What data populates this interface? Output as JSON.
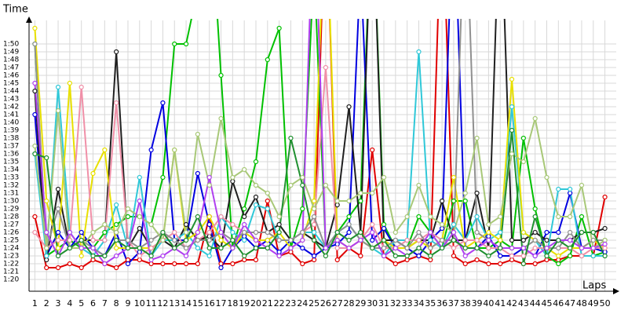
{
  "chart_data": {
    "type": "line",
    "y_label": "Time",
    "x_label": "Laps",
    "grid": true,
    "x": [
      1,
      2,
      3,
      4,
      5,
      6,
      7,
      8,
      9,
      10,
      11,
      12,
      13,
      14,
      15,
      16,
      17,
      18,
      19,
      20,
      21,
      22,
      23,
      24,
      25,
      26,
      27,
      28,
      29,
      30,
      31,
      32,
      33,
      34,
      35,
      36,
      37,
      38,
      39,
      40,
      41,
      42,
      43,
      44,
      45,
      46,
      47,
      48,
      49,
      50
    ],
    "xticks": [
      1,
      2,
      3,
      4,
      5,
      6,
      7,
      8,
      9,
      10,
      11,
      12,
      13,
      14,
      15,
      16,
      17,
      18,
      19,
      20,
      21,
      22,
      23,
      24,
      25,
      26,
      27,
      28,
      29,
      30,
      31,
      32,
      33,
      34,
      35,
      36,
      37,
      38,
      39,
      40,
      41,
      42,
      43,
      44,
      45,
      46,
      47,
      48,
      49,
      50
    ],
    "xlim": [
      0.5,
      50.5
    ],
    "ylim": [
      78.5,
      113
    ],
    "yticks": [
      {
        "value": 80,
        "label": "1:20"
      },
      {
        "value": 81,
        "label": "1:21"
      },
      {
        "value": 82,
        "label": "1:22"
      },
      {
        "value": 83,
        "label": "1:23"
      },
      {
        "value": 84,
        "label": "1:24"
      },
      {
        "value": 85,
        "label": "1:25"
      },
      {
        "value": 86,
        "label": "1:26"
      },
      {
        "value": 87,
        "label": "1:27"
      },
      {
        "value": 88,
        "label": "1:28"
      },
      {
        "value": 89,
        "label": "1:29"
      },
      {
        "value": 90,
        "label": "1:30"
      },
      {
        "value": 91,
        "label": "1:31"
      },
      {
        "value": 92,
        "label": "1:32"
      },
      {
        "value": 93,
        "label": "1:33"
      },
      {
        "value": 94,
        "label": "1:34"
      },
      {
        "value": 95,
        "label": "1:35"
      },
      {
        "value": 96,
        "label": "1:36"
      },
      {
        "value": 97,
        "label": "1:37"
      },
      {
        "value": 98,
        "label": "1:38"
      },
      {
        "value": 99,
        "label": "1:39"
      },
      {
        "value": 100,
        "label": "1:40"
      },
      {
        "value": 101,
        "label": "1:41"
      },
      {
        "value": 102,
        "label": "1:42"
      },
      {
        "value": 103,
        "label": "1:43"
      },
      {
        "value": 104,
        "label": "1:44"
      },
      {
        "value": 105,
        "label": "1:45"
      },
      {
        "value": 106,
        "label": "1:46"
      },
      {
        "value": 107,
        "label": "1:47"
      },
      {
        "value": 108,
        "label": "1:48"
      },
      {
        "value": 109,
        "label": "1:49"
      },
      {
        "value": 110,
        "label": "1:50"
      }
    ],
    "series": [
      {
        "color": "#e00000",
        "values": [
          88,
          81.5,
          81.5,
          82,
          81.5,
          82.5,
          82,
          81.5,
          82.5,
          82.5,
          82,
          82,
          82,
          82,
          82,
          88,
          82,
          82,
          82.5,
          82.5,
          90,
          83,
          83.5,
          82,
          82.5,
          130,
          82.5,
          84,
          83,
          96.5,
          83,
          82,
          82.5,
          83,
          82.5,
          130,
          83,
          82,
          82.5,
          82,
          82,
          82.5,
          82,
          82,
          82.5,
          82.5,
          83,
          83,
          83,
          90.5
        ]
      },
      {
        "color": "#00c000",
        "values": [
          110,
          83,
          84,
          85,
          84,
          84,
          86,
          87,
          88,
          88,
          87,
          93,
          110,
          110,
          117,
          130,
          106,
          84,
          89,
          95,
          108,
          112,
          84,
          89,
          120,
          84,
          86,
          88,
          90,
          130,
          87,
          84,
          84,
          88,
          86,
          84,
          90,
          90,
          84,
          84,
          85,
          84,
          98,
          89,
          83,
          82,
          83,
          88,
          83,
          83.5
        ]
      },
      {
        "color": "#0000e0",
        "values": [
          101,
          83,
          86,
          84,
          86,
          84,
          83,
          86,
          82,
          83.5,
          96.5,
          102.5,
          85,
          85,
          93.5,
          87,
          81.5,
          84,
          85.5,
          84,
          85,
          83.5,
          85,
          84,
          83,
          84,
          84.5,
          86,
          120,
          85,
          86.5,
          84,
          84,
          83,
          85,
          86.5,
          130,
          84,
          84,
          85.5,
          83,
          83,
          84,
          83,
          86,
          86,
          91,
          84,
          84,
          83.5
        ]
      },
      {
        "color": "#202020",
        "values": [
          104,
          82.5,
          91.5,
          84,
          85,
          85,
          85,
          109,
          84,
          86.5,
          84,
          85,
          84,
          87,
          85,
          85.5,
          84,
          92.5,
          88,
          90.5,
          86,
          87,
          85,
          86,
          85,
          84,
          89.5,
          102,
          86,
          130,
          85,
          85,
          84,
          85,
          85,
          90,
          85,
          85,
          91,
          84,
          130,
          85,
          85,
          86,
          85,
          85,
          85,
          86,
          86,
          86.5
        ]
      },
      {
        "color": "#30c8d8",
        "values": [
          96,
          83,
          104.5,
          86,
          84,
          83,
          85,
          89.5,
          84,
          93,
          83,
          85,
          85,
          86,
          84,
          83,
          88,
          86,
          85,
          89.5,
          89,
          85,
          85,
          86,
          86,
          84,
          86,
          87,
          85,
          84,
          83,
          85,
          85,
          109,
          85,
          84,
          87,
          85,
          88,
          85,
          86,
          102,
          86,
          85,
          83,
          91.5,
          91.5,
          83,
          83,
          83
        ]
      },
      {
        "color": "#e8e000",
        "values": [
          112,
          90,
          84,
          105,
          83,
          93.5,
          96.5,
          84,
          84,
          84,
          84,
          85,
          96.5,
          85,
          86,
          88,
          85,
          84,
          86,
          85,
          85,
          86,
          84,
          85,
          90,
          130,
          85,
          84,
          85,
          84,
          85,
          84,
          84,
          85,
          84,
          85,
          93,
          84,
          85,
          86,
          85,
          105.5,
          86,
          85,
          84,
          83,
          84,
          84,
          85,
          84
        ]
      },
      {
        "color": "#f090a8",
        "values": [
          86,
          84,
          85,
          85,
          104.5,
          85,
          85,
          102.5,
          85,
          83,
          84,
          85,
          86,
          84,
          85,
          86,
          88,
          87,
          86,
          86,
          86,
          85,
          85,
          86,
          87,
          107,
          84,
          84,
          85,
          87,
          84,
          84,
          85,
          85,
          86,
          85,
          84,
          85,
          85,
          84,
          84,
          83,
          83,
          84,
          84,
          84,
          84,
          83,
          84,
          84
        ]
      },
      {
        "color": "#909090",
        "values": [
          110,
          84,
          89,
          84,
          85,
          84,
          83,
          85,
          85,
          84,
          85,
          86,
          85,
          84,
          85,
          85,
          86,
          85,
          86,
          86,
          86,
          85,
          85,
          86,
          88,
          84,
          86,
          87,
          85,
          84,
          84,
          85,
          84,
          86,
          84,
          85,
          85,
          130,
          86,
          85,
          84,
          84,
          84,
          85,
          84,
          84,
          86,
          84,
          85,
          85
        ]
      },
      {
        "color": "#a8c878",
        "values": [
          97,
          84,
          101.5,
          84,
          84,
          86,
          87,
          86,
          89,
          88,
          87,
          85,
          96.5,
          86,
          98.5,
          92,
          100.5,
          93,
          94,
          92,
          91,
          88,
          92,
          93,
          89,
          92,
          90,
          90,
          91,
          91,
          93,
          86,
          88,
          92,
          88,
          87,
          86,
          91,
          98,
          87,
          88,
          96,
          95,
          100.5,
          93,
          88,
          88,
          92,
          84,
          85
        ]
      },
      {
        "color": "#b040f0",
        "values": [
          105,
          86,
          83,
          86,
          84,
          84,
          82,
          83,
          84,
          90,
          82.5,
          83,
          84,
          83,
          86,
          93,
          86,
          84,
          87,
          85,
          84,
          83,
          84,
          85,
          130,
          84,
          85,
          84,
          85,
          86,
          83,
          84,
          83,
          84,
          86,
          84,
          86,
          83,
          84,
          85,
          84,
          84,
          84,
          83,
          84,
          85,
          85,
          84,
          84,
          84.5
        ]
      },
      {
        "color": "#209030",
        "values": [
          96,
          95.5,
          83,
          84,
          85,
          83,
          83,
          85,
          84,
          84,
          83,
          86,
          84,
          85,
          88,
          84,
          84,
          85,
          83,
          84,
          84,
          86,
          98,
          92,
          85,
          83,
          86,
          85,
          86,
          84,
          85,
          83,
          83,
          84,
          83,
          84,
          85,
          84,
          84,
          83,
          84,
          99,
          82,
          88,
          83,
          85,
          84,
          86,
          86,
          83
        ]
      }
    ]
  }
}
